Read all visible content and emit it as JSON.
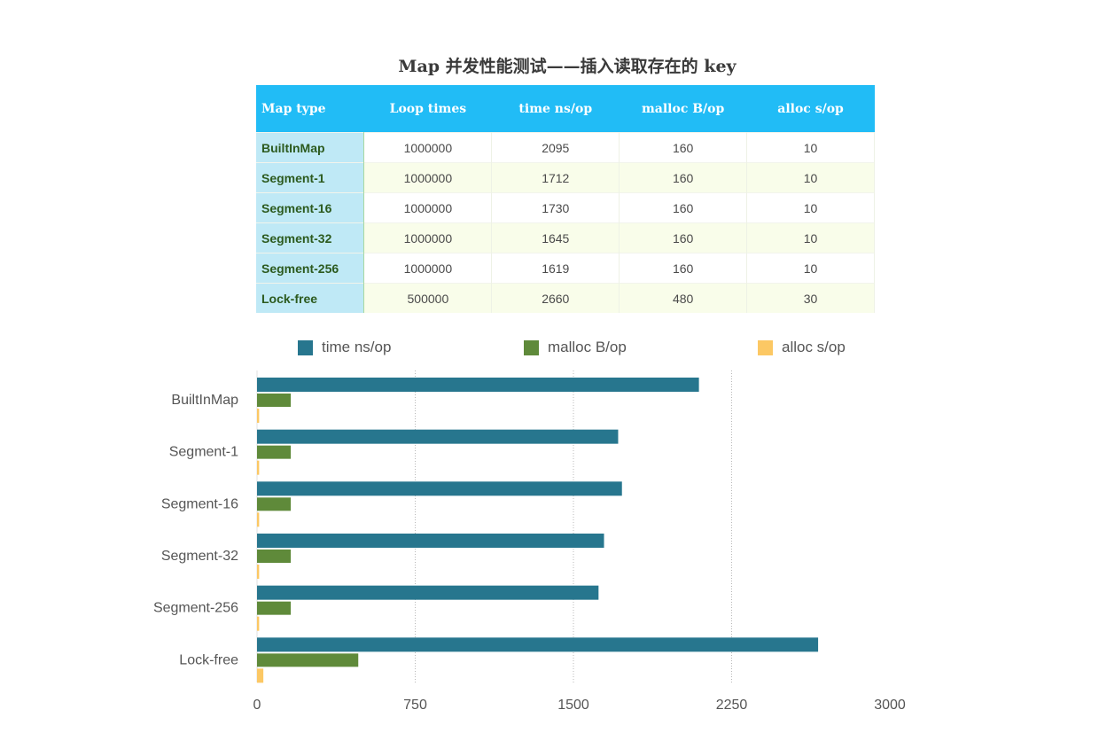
{
  "title": "Map 并发性能测试——插入读取存在的 key",
  "table": {
    "headers": [
      "Map type",
      "Loop times",
      "time ns/op",
      "malloc B/op",
      "alloc s/op"
    ],
    "rows": [
      [
        "BuiltInMap",
        "1000000",
        "2095",
        "160",
        "10"
      ],
      [
        "Segment-1",
        "1000000",
        "1712",
        "160",
        "10"
      ],
      [
        "Segment-16",
        "1000000",
        "1730",
        "160",
        "10"
      ],
      [
        "Segment-32",
        "1000000",
        "1645",
        "160",
        "10"
      ],
      [
        "Segment-256",
        "1000000",
        "1619",
        "160",
        "10"
      ],
      [
        "Lock-free",
        "500000",
        "2660",
        "480",
        "30"
      ]
    ]
  },
  "colors": {
    "header_bg": "#21bcf6",
    "time": "#27768e",
    "malloc": "#5f8a3a",
    "alloc": "#fcc864"
  },
  "chart_data": {
    "type": "bar",
    "orientation": "horizontal",
    "categories": [
      "BuiltInMap",
      "Segment-1",
      "Segment-16",
      "Segment-32",
      "Segment-256",
      "Lock-free"
    ],
    "series": [
      {
        "name": "time ns/op",
        "values": [
          2095,
          1712,
          1730,
          1645,
          1619,
          2660
        ],
        "color": "#27768e"
      },
      {
        "name": "malloc B/op",
        "values": [
          160,
          160,
          160,
          160,
          160,
          480
        ],
        "color": "#5f8a3a"
      },
      {
        "name": "alloc s/op",
        "values": [
          10,
          10,
          10,
          10,
          10,
          30
        ],
        "color": "#fcc864"
      }
    ],
    "xlim": [
      0,
      3000
    ],
    "xticks": [
      "0",
      "750",
      "1500",
      "2250",
      "3000"
    ],
    "grid": "vertical dotted",
    "legend_position": "top"
  }
}
